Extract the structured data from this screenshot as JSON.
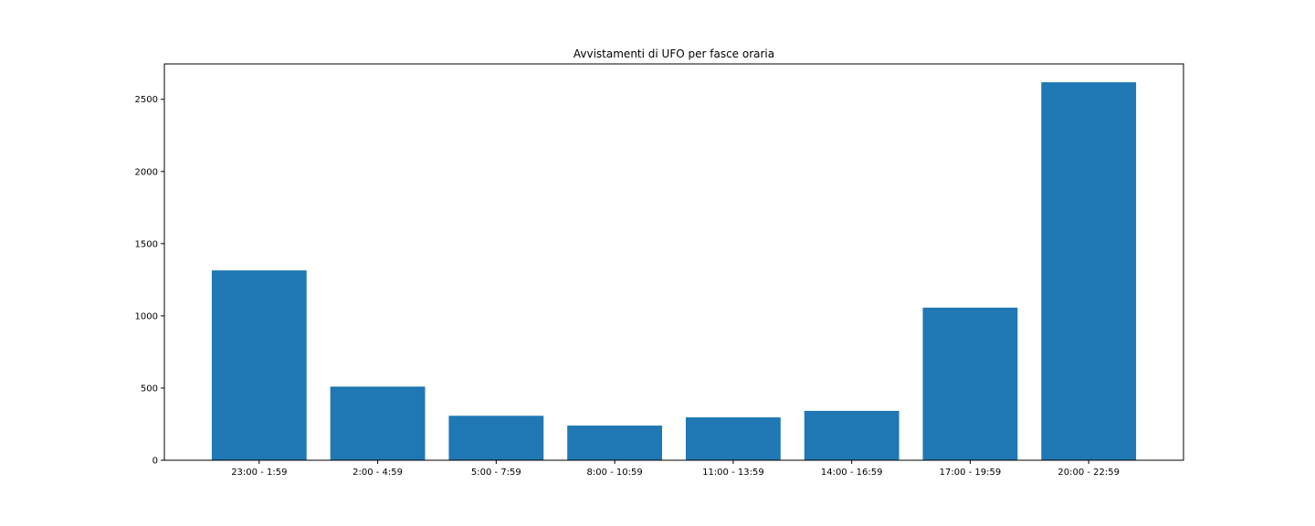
{
  "chart_data": {
    "type": "bar",
    "title": "Avvistamenti di UFO per fasce oraria",
    "xlabel": "",
    "ylabel": "",
    "categories": [
      "23:00 - 1:59",
      "2:00 - 4:59",
      "5:00 - 7:59",
      "8:00 - 10:59",
      "11:00 - 13:59",
      "14:00 - 16:59",
      "17:00 - 19:59",
      "20:00 - 22:59"
    ],
    "values": [
      1315,
      510,
      308,
      240,
      297,
      342,
      1057,
      2618
    ],
    "ylim": [
      0,
      2745
    ],
    "yticks": [
      0,
      500,
      1000,
      1500,
      2000,
      2500
    ],
    "bar_color": "#1f77b4",
    "grid": false,
    "legend": "none"
  }
}
